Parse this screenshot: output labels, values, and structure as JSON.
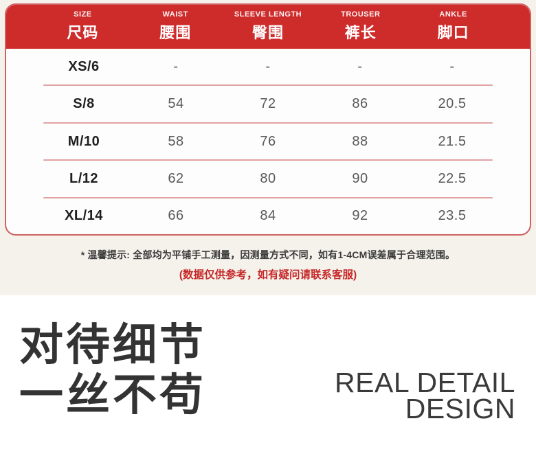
{
  "size_chart": {
    "columns": [
      {
        "en": "SIZE",
        "zh": "尺码"
      },
      {
        "en": "WAIST",
        "zh": "腰围"
      },
      {
        "en": "SLEEVE LENGTH",
        "zh": "臀围"
      },
      {
        "en": "TROUSER",
        "zh": "裤长"
      },
      {
        "en": "ANKLE",
        "zh": "脚口"
      }
    ],
    "rows": [
      {
        "size": "XS/6",
        "values": [
          "-",
          "-",
          "-",
          "-"
        ]
      },
      {
        "size": "S/8",
        "values": [
          "54",
          "72",
          "86",
          "20.5"
        ]
      },
      {
        "size": "M/10",
        "values": [
          "58",
          "76",
          "88",
          "21.5"
        ]
      },
      {
        "size": "L/12",
        "values": [
          "62",
          "80",
          "90",
          "22.5"
        ]
      },
      {
        "size": "XL/14",
        "values": [
          "66",
          "84",
          "92",
          "23.5"
        ]
      }
    ]
  },
  "note": {
    "line1": "* 温馨提示: 全部均为平铺手工测量，因测量方式不同，如有1-4CM误差属于合理范围。",
    "line2": "(数据仅供参考，如有疑问请联系客服)"
  },
  "banner": {
    "headline_zh_line1": "对待细节",
    "headline_zh_line2": "一丝不苟",
    "headline_en_line1": "REAL DETAIL",
    "headline_en_line2": "DESIGN"
  },
  "colors": {
    "accent_red": "#ce2b2b",
    "divider_pink": "#e2a3a2",
    "cream_background": "#f5f2ec",
    "text_dark": "#333333",
    "note_red": "#c52727"
  }
}
